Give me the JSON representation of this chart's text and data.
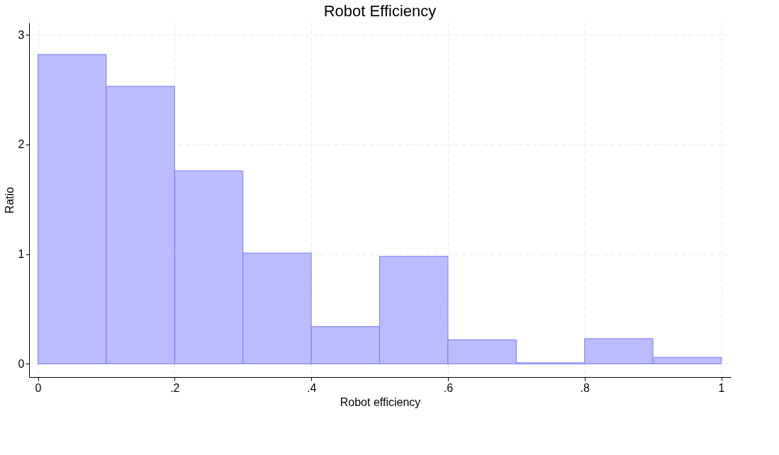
{
  "chart_data": {
    "type": "histogram",
    "title": "Robot Efficiency",
    "xlabel": "Robot efficiency",
    "ylabel": "Ratio",
    "bins": [
      0,
      0.1,
      0.2,
      0.3,
      0.4,
      0.5,
      0.6,
      0.7,
      0.8,
      0.9,
      1
    ],
    "values": [
      2.82,
      2.53,
      1.76,
      1.01,
      0.34,
      0.98,
      0.22,
      0.01,
      0.23,
      0.06
    ],
    "color": "#b9bbfd",
    "xlim": [
      -0.013,
      1.014
    ],
    "ylim": [
      -0.12,
      3.11
    ],
    "xticks": [
      0,
      {
        "value": 0.2,
        "label": ".2"
      },
      {
        "value": 0.4,
        "label": ".4"
      },
      {
        "value": 0.6,
        "label": ".6"
      },
      {
        "value": 0.8,
        "label": ".8"
      },
      1
    ],
    "yticks": [
      0,
      1,
      2,
      3
    ],
    "grid": true
  }
}
